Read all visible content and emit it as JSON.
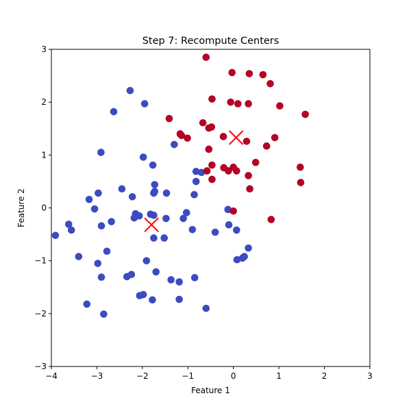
{
  "chart_data": {
    "type": "scatter",
    "title": "Step 7: Recompute Centers",
    "xlabel": "Feature 1",
    "ylabel": "Feature 2",
    "xlim": [
      -4,
      3
    ],
    "ylim": [
      -3,
      3
    ],
    "xticks": [
      -4,
      -3,
      -2,
      -1,
      0,
      1,
      2,
      3
    ],
    "yticks": [
      -3,
      -2,
      -1,
      0,
      1,
      2,
      3
    ],
    "grid": false,
    "series": [
      {
        "color": "#3b4cc0",
        "points": [
          [
            -2.27,
            2.22
          ],
          [
            -1.95,
            1.97
          ],
          [
            -2.63,
            1.82
          ],
          [
            -2.91,
            1.05
          ],
          [
            -1.3,
            1.2
          ],
          [
            -1.98,
            0.96
          ],
          [
            -1.77,
            0.81
          ],
          [
            -0.82,
            0.69
          ],
          [
            -0.7,
            0.67
          ],
          [
            -0.82,
            0.5
          ],
          [
            -1.73,
            0.44
          ],
          [
            -2.45,
            0.36
          ],
          [
            -1.73,
            0.31
          ],
          [
            -1.75,
            0.28
          ],
          [
            -1.47,
            0.28
          ],
          [
            -2.97,
            0.28
          ],
          [
            -2.22,
            0.21
          ],
          [
            -0.86,
            0.25
          ],
          [
            -3.17,
            0.16
          ],
          [
            -3.05,
            -0.02
          ],
          [
            -0.12,
            -0.03
          ],
          [
            -2.15,
            -0.11
          ],
          [
            -2.07,
            -0.15
          ],
          [
            -1.82,
            -0.12
          ],
          [
            -1.75,
            -0.14
          ],
          [
            -1.03,
            -0.09
          ],
          [
            -2.18,
            -0.19
          ],
          [
            -1.48,
            -0.2
          ],
          [
            -1.1,
            -0.2
          ],
          [
            -2.68,
            -0.26
          ],
          [
            -3.62,
            -0.31
          ],
          [
            -2.9,
            -0.34
          ],
          [
            -3.56,
            -0.42
          ],
          [
            -0.1,
            -0.32
          ],
          [
            0.07,
            -0.42
          ],
          [
            -0.9,
            -0.41
          ],
          [
            -0.4,
            -0.46
          ],
          [
            -3.91,
            -0.52
          ],
          [
            -1.75,
            -0.57
          ],
          [
            -1.52,
            -0.57
          ],
          [
            -2.78,
            -0.82
          ],
          [
            0.33,
            -0.76
          ],
          [
            -3.4,
            -0.92
          ],
          [
            0.24,
            -0.92
          ],
          [
            0.2,
            -0.95
          ],
          [
            0.08,
            -0.98
          ],
          [
            -1.91,
            -1.0
          ],
          [
            -2.98,
            -1.05
          ],
          [
            -1.7,
            -1.21
          ],
          [
            -2.24,
            -1.26
          ],
          [
            -2.34,
            -1.3
          ],
          [
            -2.9,
            -1.31
          ],
          [
            -0.85,
            -1.32
          ],
          [
            -1.37,
            -1.36
          ],
          [
            -1.19,
            -1.4
          ],
          [
            -1.98,
            -1.64
          ],
          [
            -2.06,
            -1.66
          ],
          [
            -1.78,
            -1.74
          ],
          [
            -1.19,
            -1.73
          ],
          [
            -3.22,
            -1.82
          ],
          [
            -0.6,
            -1.9
          ],
          [
            -2.85,
            -2.01
          ]
        ]
      },
      {
        "color": "#b40426",
        "points": [
          [
            -0.6,
            2.85
          ],
          [
            -0.03,
            2.56
          ],
          [
            0.35,
            2.54
          ],
          [
            0.65,
            2.52
          ],
          [
            0.81,
            2.35
          ],
          [
            -0.47,
            2.06
          ],
          [
            -0.06,
            2.0
          ],
          [
            0.1,
            1.97
          ],
          [
            0.33,
            1.97
          ],
          [
            1.02,
            1.93
          ],
          [
            1.58,
            1.77
          ],
          [
            -1.41,
            1.69
          ],
          [
            -0.67,
            1.61
          ],
          [
            -0.48,
            1.53
          ],
          [
            -0.54,
            1.51
          ],
          [
            -1.17,
            1.4
          ],
          [
            -1.14,
            1.37
          ],
          [
            -1.01,
            1.32
          ],
          [
            -0.22,
            1.35
          ],
          [
            0.29,
            1.26
          ],
          [
            0.91,
            1.33
          ],
          [
            0.73,
            1.17
          ],
          [
            -0.54,
            1.11
          ],
          [
            0.49,
            0.86
          ],
          [
            -0.47,
            0.81
          ],
          [
            -0.21,
            0.76
          ],
          [
            0.0,
            0.77
          ],
          [
            -0.58,
            0.7
          ],
          [
            -0.11,
            0.7
          ],
          [
            0.07,
            0.7
          ],
          [
            1.47,
            0.77
          ],
          [
            0.33,
            0.61
          ],
          [
            -0.47,
            0.54
          ],
          [
            1.48,
            0.48
          ],
          [
            0.36,
            0.36
          ],
          [
            0.0,
            -0.06
          ],
          [
            0.83,
            -0.22
          ]
        ]
      }
    ],
    "centers": {
      "color": "#ff0000",
      "marker": "x",
      "points": [
        [
          -1.8,
          -0.32
        ],
        [
          0.06,
          1.33
        ]
      ]
    }
  }
}
